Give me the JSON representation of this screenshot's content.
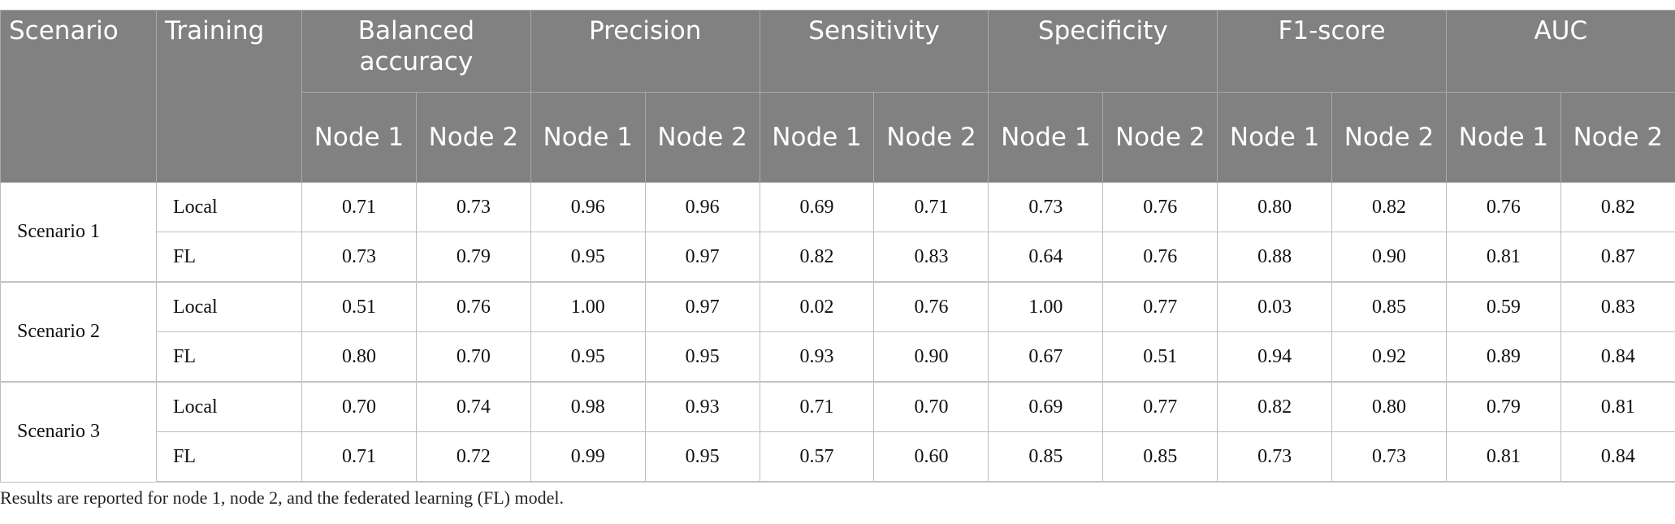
{
  "header": {
    "scenario": "Scenario",
    "training": "Training",
    "metrics": [
      "Balanced accuracy",
      "Precision",
      "Sensitivity",
      "Specificity",
      "F1-score",
      "AUC"
    ],
    "node1": "Node 1",
    "node2": "Node 2"
  },
  "rows": [
    {
      "scenario": "Scenario 1",
      "training": "Local",
      "values": [
        "0.71",
        "0.73",
        "0.96",
        "0.96",
        "0.69",
        "0.71",
        "0.73",
        "0.76",
        "0.80",
        "0.82",
        "0.76",
        "0.82"
      ]
    },
    {
      "scenario": "Scenario 1",
      "training": "FL",
      "values": [
        "0.73",
        "0.79",
        "0.95",
        "0.97",
        "0.82",
        "0.83",
        "0.64",
        "0.76",
        "0.88",
        "0.90",
        "0.81",
        "0.87"
      ]
    },
    {
      "scenario": "Scenario 2",
      "training": "Local",
      "values": [
        "0.51",
        "0.76",
        "1.00",
        "0.97",
        "0.02",
        "0.76",
        "1.00",
        "0.77",
        "0.03",
        "0.85",
        "0.59",
        "0.83"
      ]
    },
    {
      "scenario": "Scenario 2",
      "training": "FL",
      "values": [
        "0.80",
        "0.70",
        "0.95",
        "0.95",
        "0.93",
        "0.90",
        "0.67",
        "0.51",
        "0.94",
        "0.92",
        "0.89",
        "0.84"
      ]
    },
    {
      "scenario": "Scenario 3",
      "training": "Local",
      "values": [
        "0.70",
        "0.74",
        "0.98",
        "0.93",
        "0.71",
        "0.70",
        "0.69",
        "0.77",
        "0.82",
        "0.80",
        "0.79",
        "0.81"
      ]
    },
    {
      "scenario": "Scenario 3",
      "training": "FL",
      "values": [
        "0.71",
        "0.72",
        "0.99",
        "0.95",
        "0.57",
        "0.60",
        "0.85",
        "0.85",
        "0.73",
        "0.73",
        "0.81",
        "0.84"
      ]
    }
  ],
  "caption": "Results are reported for node 1, node 2, and the federated learning (FL) model.",
  "colors": {
    "header_bg": "#818181",
    "header_text": "#ffffff",
    "border": "#bdbdbd"
  }
}
